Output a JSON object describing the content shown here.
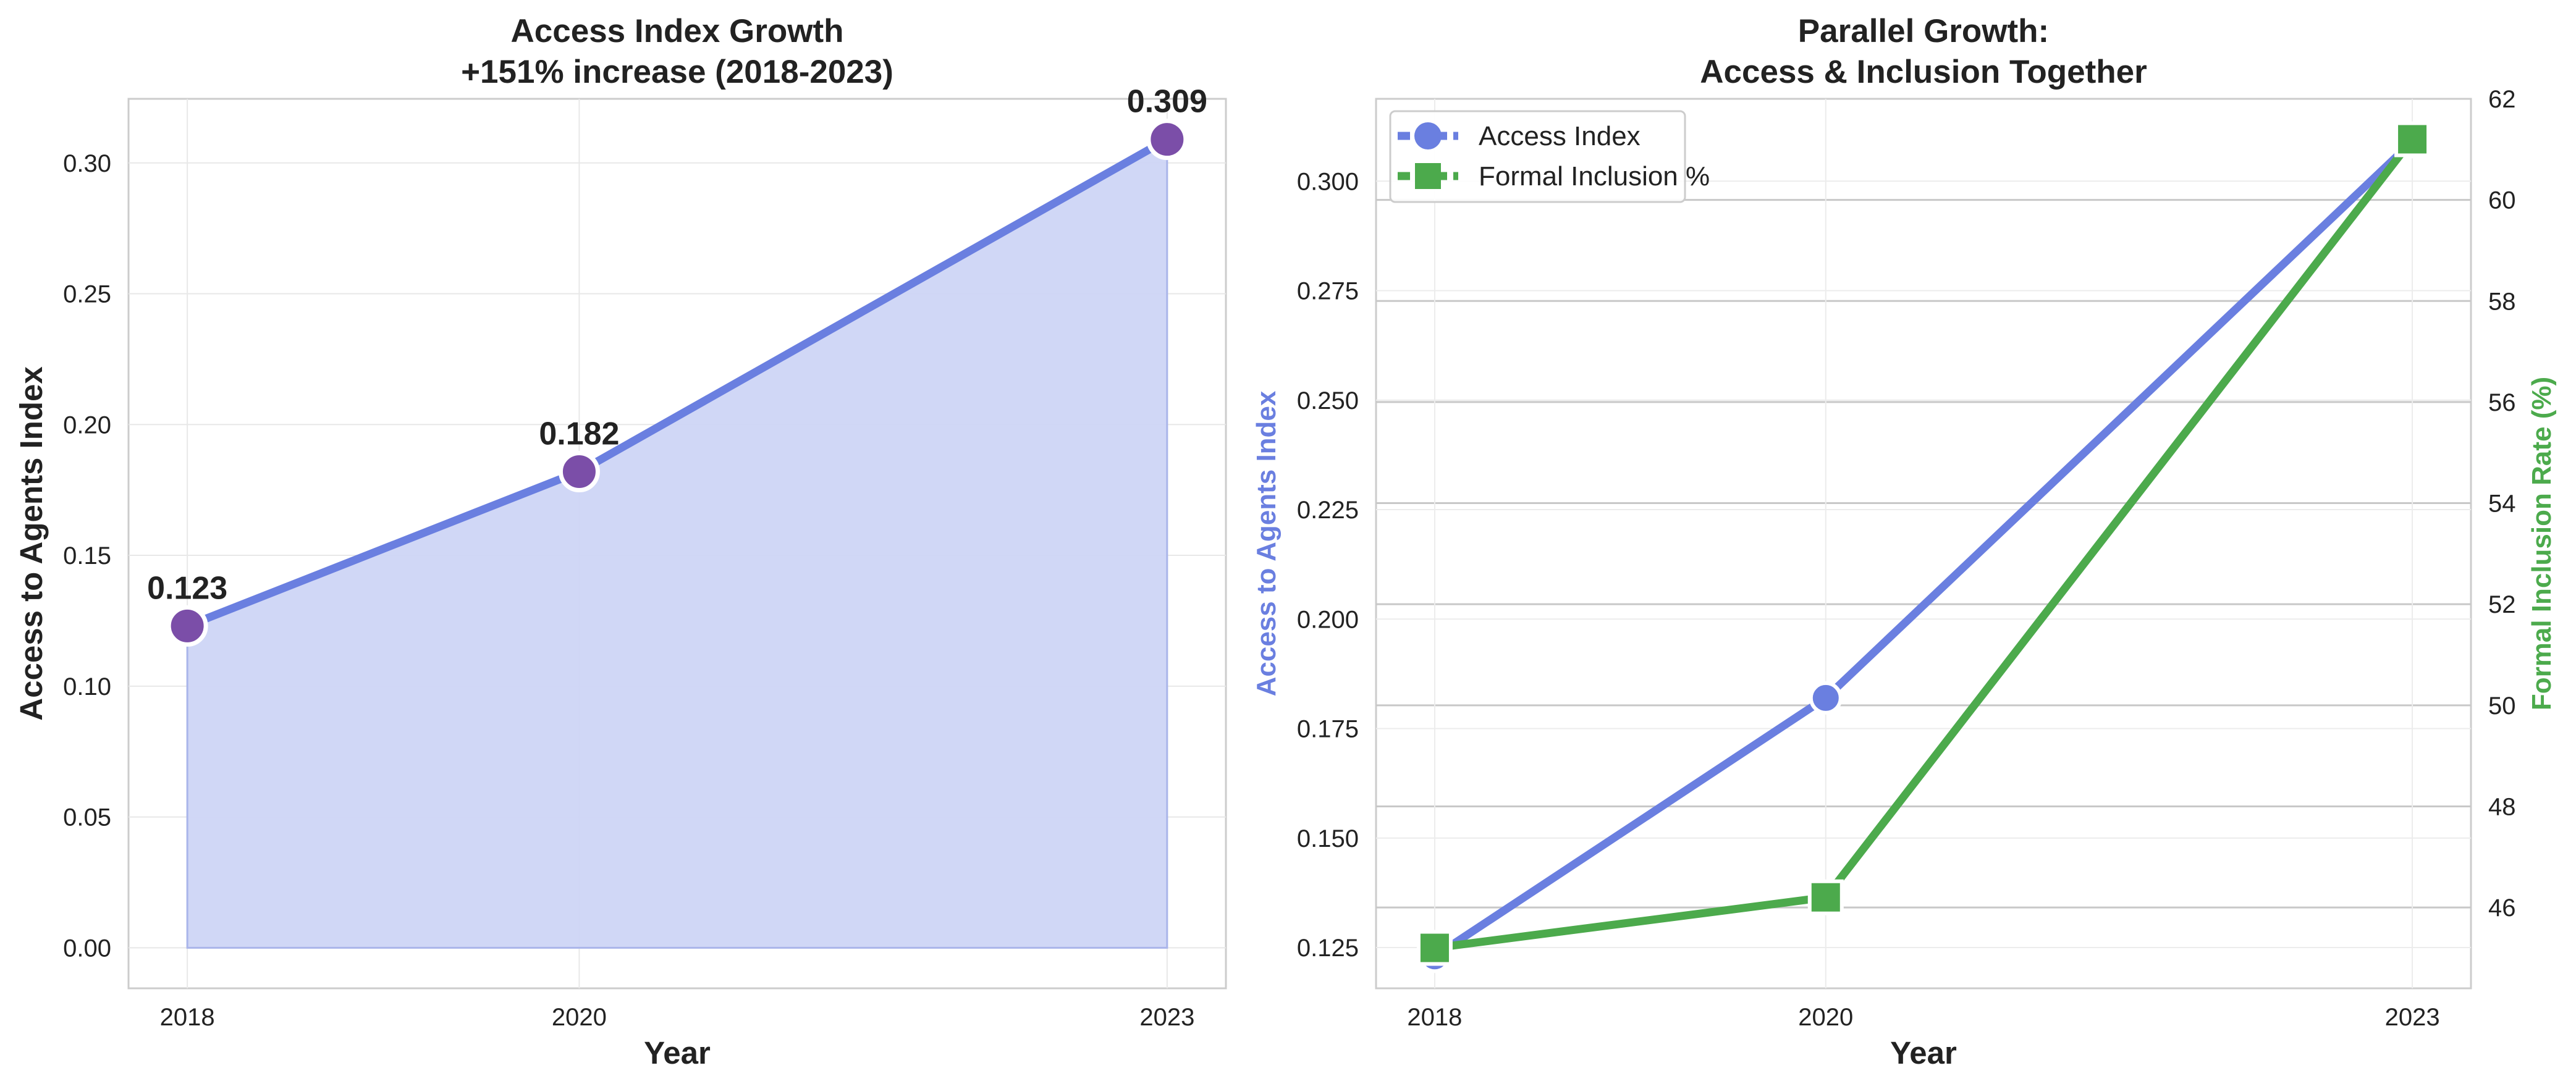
{
  "chart_data": [
    {
      "type": "area",
      "title_line1": "Access Index Growth",
      "title_line2": "+151% increase (2018-2023)",
      "xlabel": "Year",
      "ylabel": "Access to Agents Index",
      "x": [
        2018,
        2020,
        2023
      ],
      "x_ticks": [
        "2018",
        "2020",
        "2023"
      ],
      "xlim": [
        2017.7,
        2023.3
      ],
      "values": [
        0.123,
        0.182,
        0.309
      ],
      "point_labels": [
        "0.123",
        "0.182",
        "0.309"
      ],
      "ylim": [
        -0.0155,
        0.3245
      ],
      "y_ticks": [
        0.0,
        0.05,
        0.1,
        0.15,
        0.2,
        0.25,
        0.3
      ],
      "y_tick_labels": [
        "0.00",
        "0.05",
        "0.10",
        "0.15",
        "0.20",
        "0.25",
        "0.30"
      ],
      "grid": true,
      "colors": {
        "line": "#6a7fe0",
        "fill": "#cdd5f5",
        "marker": "#7b4ea8"
      }
    },
    {
      "type": "line",
      "title_line1": "Parallel Growth:",
      "title_line2": "Access & Inclusion Together",
      "xlabel": "Year",
      "ylabel_left": "Access to Agents Index",
      "ylabel_right": "Formal Inclusion Rate (%)",
      "x": [
        2018,
        2020,
        2023
      ],
      "x_ticks": [
        "2018",
        "2020",
        "2023"
      ],
      "xlim": [
        2017.7,
        2023.3
      ],
      "ylim_left": [
        0.1157,
        0.3188
      ],
      "y_ticks_left": [
        0.125,
        0.15,
        0.175,
        0.2,
        0.225,
        0.25,
        0.275,
        0.3
      ],
      "y_tick_labels_left": [
        "0.125",
        "0.150",
        "0.175",
        "0.200",
        "0.225",
        "0.250",
        "0.275",
        "0.300"
      ],
      "ylim_right": [
        44.4,
        62.0
      ],
      "y_ticks_right": [
        46,
        48,
        50,
        52,
        54,
        56,
        58,
        60,
        62
      ],
      "y_tick_labels_right": [
        "46",
        "48",
        "50",
        "52",
        "54",
        "56",
        "58",
        "60",
        "62"
      ],
      "series": [
        {
          "name": "Access Index",
          "axis": "left",
          "values": [
            0.123,
            0.182,
            0.309
          ],
          "marker": "circle",
          "color": "#6a7fe0"
        },
        {
          "name": "Formal Inclusion %",
          "axis": "right",
          "values": [
            45.2,
            46.2,
            61.2
          ],
          "marker": "square",
          "color": "#4caa4c"
        }
      ],
      "legend": "top-left",
      "grid": true
    }
  ]
}
